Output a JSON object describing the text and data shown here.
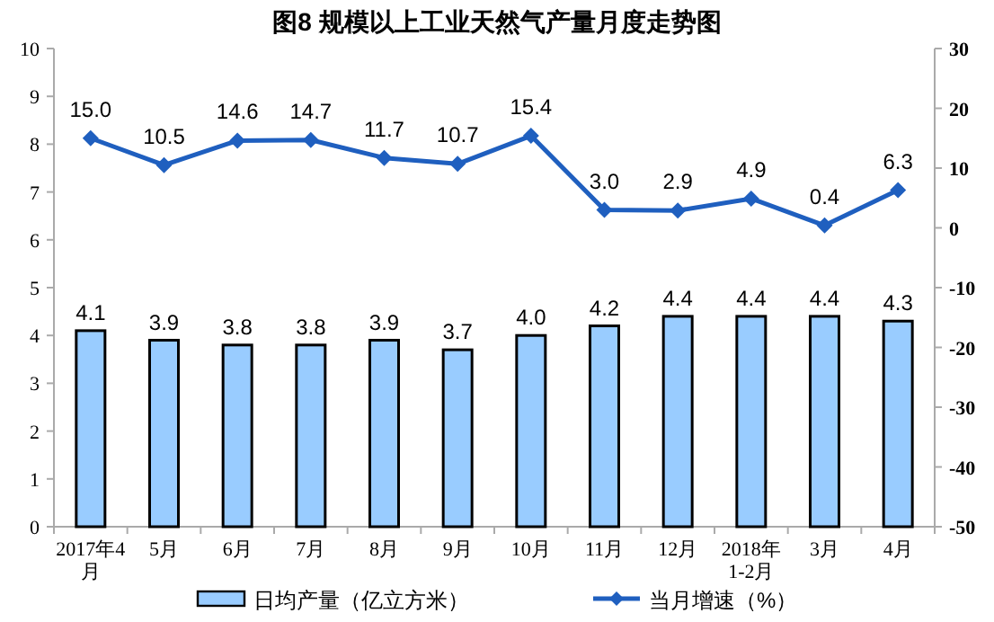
{
  "chart_data": {
    "type": "bar",
    "title": "图8  规模以上工业天然气产量月度走势图",
    "categories": [
      "2017年4\n月",
      "5月",
      "6月",
      "7月",
      "8月",
      "9月",
      "10月",
      "11月",
      "12月",
      "2018年\n1-2月",
      "3月",
      "4月"
    ],
    "series": [
      {
        "name": "日均产量（亿立方米）",
        "color": "#99ccff",
        "values": [
          4.1,
          3.9,
          3.8,
          3.8,
          3.9,
          3.7,
          4.0,
          4.2,
          4.4,
          4.4,
          4.4,
          4.3
        ],
        "value_labels": [
          "4.1",
          "3.9",
          "3.8",
          "3.8",
          "3.9",
          "3.7",
          "4.0",
          "4.2",
          "4.4",
          "4.4",
          "4.4",
          "4.3"
        ]
      },
      {
        "name": "当月增速（%）",
        "type": "line",
        "axis": "y2",
        "color": "#1f5fbf",
        "marker": "diamond",
        "values": [
          15.0,
          10.5,
          14.6,
          14.7,
          11.7,
          10.7,
          15.4,
          3.0,
          2.9,
          4.9,
          0.4,
          6.3
        ],
        "value_labels": [
          "15.0",
          "10.5",
          "14.6",
          "14.7",
          "11.7",
          "10.7",
          "15.4",
          "3.0",
          "2.9",
          "4.9",
          "0.4",
          "6.3"
        ]
      }
    ],
    "ylim": [
      0,
      10
    ],
    "yticks": [
      0,
      1,
      2,
      3,
      4,
      5,
      6,
      7,
      8,
      9,
      10
    ],
    "y2lim": [
      -50,
      30
    ],
    "y2ticks": [
      -50,
      -40,
      -30,
      -20,
      -10,
      0,
      10,
      20,
      30
    ],
    "legend": "bottom",
    "grid": false
  }
}
